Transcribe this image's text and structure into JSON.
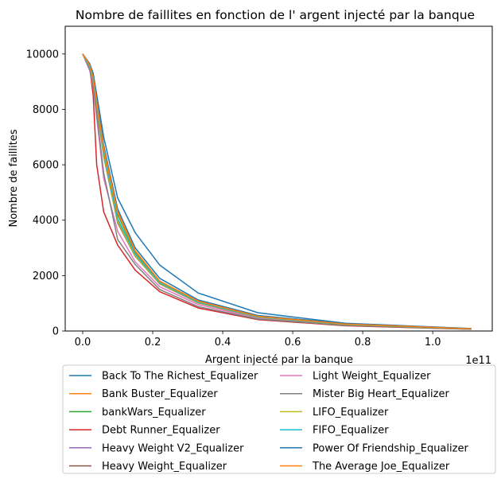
{
  "chart_data": {
    "type": "line",
    "title": "Nombre de faillites en fonction de l' argent injecté par la banque",
    "xlabel": "Argent injecté par la banque",
    "ylabel": "Nombre de faillites",
    "x_offset_text": "1e11",
    "xlim": [
      -0.05,
      1.17
    ],
    "ylim": [
      0,
      11000
    ],
    "x_ticks": [
      0.0,
      0.2,
      0.4,
      0.6,
      0.8,
      1.0
    ],
    "x_tick_labels": [
      "0.0",
      "0.2",
      "0.4",
      "0.6",
      "0.8",
      "1.0"
    ],
    "y_ticks": [
      0,
      2000,
      4000,
      6000,
      8000,
      10000
    ],
    "y_tick_labels": [
      "0",
      "2000",
      "4000",
      "6000",
      "8000",
      "10000"
    ],
    "grid": false,
    "legend_position": "below plot, two columns",
    "series": [
      {
        "name": "Back To The Richest_Equalizer",
        "color": "#1f77b4",
        "x": [
          0.0,
          0.02,
          0.03,
          0.06,
          0.1,
          0.15,
          0.22,
          0.33,
          0.5,
          0.75,
          1.11
        ],
        "y": [
          10000,
          9600,
          9200,
          6700,
          4400,
          3000,
          1900,
          1120,
          560,
          270,
          85
        ]
      },
      {
        "name": "Bank Buster_Equalizer",
        "color": "#ff7f0e",
        "x": [
          0.0,
          0.02,
          0.03,
          0.06,
          0.1,
          0.15,
          0.22,
          0.33,
          0.5,
          0.75,
          1.11
        ],
        "y": [
          10000,
          9600,
          9150,
          6600,
          4300,
          2900,
          1800,
          1080,
          530,
          255,
          80
        ]
      },
      {
        "name": "bankWars_Equalizer",
        "color": "#2ca02c",
        "x": [
          0.0,
          0.02,
          0.03,
          0.06,
          0.1,
          0.15,
          0.22,
          0.33,
          0.5,
          0.75,
          1.11
        ],
        "y": [
          10000,
          9600,
          9150,
          6500,
          4200,
          2850,
          1780,
          1060,
          520,
          250,
          78
        ]
      },
      {
        "name": "Debt Runner_Equalizer",
        "color": "#d62728",
        "x": [
          0.0,
          0.02,
          0.03,
          0.04,
          0.06,
          0.1,
          0.15,
          0.22,
          0.33,
          0.5,
          0.75,
          1.11
        ],
        "y": [
          10000,
          9500,
          8500,
          6000,
          4300,
          3100,
          2200,
          1420,
          830,
          410,
          190,
          60
        ]
      },
      {
        "name": "Heavy Weight V2_Equalizer",
        "color": "#9467bd",
        "x": [
          0.0,
          0.02,
          0.03,
          0.06,
          0.1,
          0.15,
          0.22,
          0.33,
          0.5,
          0.75,
          1.11
        ],
        "y": [
          10000,
          9550,
          9100,
          6400,
          4000,
          2750,
          1720,
          1030,
          500,
          240,
          75
        ]
      },
      {
        "name": "Heavy Weight_Equalizer",
        "color": "#8c564b",
        "x": [
          0.0,
          0.02,
          0.03,
          0.06,
          0.1,
          0.15,
          0.22,
          0.33,
          0.5,
          0.75,
          1.11
        ],
        "y": [
          10000,
          9550,
          9000,
          6300,
          3900,
          2700,
          1700,
          1010,
          490,
          235,
          73
        ]
      },
      {
        "name": "Light Weight_Equalizer",
        "color": "#e377c2",
        "x": [
          0.0,
          0.02,
          0.03,
          0.06,
          0.1,
          0.15,
          0.22,
          0.33,
          0.5,
          0.75,
          1.11
        ],
        "y": [
          10000,
          9400,
          8800,
          5500,
          3600,
          2500,
          1600,
          950,
          460,
          220,
          68
        ]
      },
      {
        "name": "Mister Big Heart_Equalizer",
        "color": "#7f7f7f",
        "x": [
          0.0,
          0.02,
          0.03,
          0.06,
          0.1,
          0.15,
          0.22,
          0.33,
          0.5,
          0.75,
          1.11
        ],
        "y": [
          10000,
          9450,
          8900,
          5700,
          3300,
          2400,
          1500,
          880,
          430,
          205,
          65
        ]
      },
      {
        "name": "LIFO_Equalizer",
        "color": "#bcbd22",
        "x": [
          0.0,
          0.02,
          0.03,
          0.06,
          0.1,
          0.15,
          0.22,
          0.33,
          0.5,
          0.75,
          1.11
        ],
        "y": [
          10000,
          9550,
          9050,
          6350,
          3950,
          2720,
          1710,
          1020,
          495,
          238,
          74
        ]
      },
      {
        "name": "FIFO_Equalizer",
        "color": "#17becf",
        "x": [
          0.0,
          0.02,
          0.03,
          0.06,
          0.1,
          0.15,
          0.22,
          0.33,
          0.5,
          0.75,
          1.11
        ],
        "y": [
          10000,
          9550,
          9100,
          6450,
          4050,
          2780,
          1740,
          1040,
          505,
          243,
          76
        ]
      },
      {
        "name": "Power Of Friendship_Equalizer",
        "color": "#1f77b4",
        "x": [
          0.0,
          0.02,
          0.03,
          0.06,
          0.1,
          0.15,
          0.22,
          0.33,
          0.5,
          0.75,
          1.11
        ],
        "y": [
          10000,
          9650,
          9300,
          7000,
          4800,
          3550,
          2380,
          1370,
          660,
          280,
          90
        ]
      },
      {
        "name": "The Average Joe_Equalizer",
        "color": "#ff7f0e",
        "x": [
          0.0,
          0.02,
          0.03,
          0.06,
          0.1,
          0.15,
          0.22,
          0.33,
          0.5,
          0.75,
          1.11
        ],
        "y": [
          10000,
          9600,
          9150,
          6550,
          4250,
          2880,
          1790,
          1070,
          525,
          252,
          79
        ]
      }
    ]
  }
}
